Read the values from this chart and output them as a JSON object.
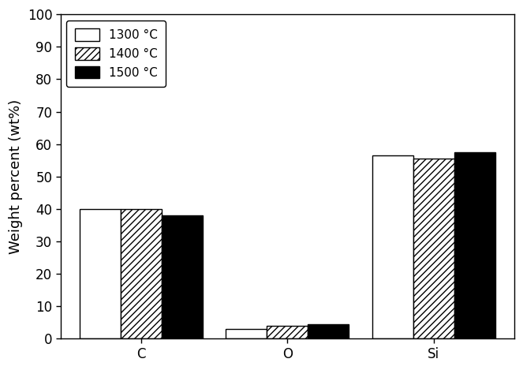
{
  "categories": [
    "C",
    "O",
    "Si"
  ],
  "series": [
    {
      "label": "1300 °C",
      "values": [
        40.0,
        3.0,
        56.5
      ],
      "style": "white"
    },
    {
      "label": "1400 °C",
      "values": [
        40.0,
        4.0,
        55.5
      ],
      "style": "hatch"
    },
    {
      "label": "1500 °C",
      "values": [
        38.0,
        4.5,
        57.5
      ],
      "style": "black"
    }
  ],
  "ylabel": "Weight percent (wt%)",
  "ylim": [
    0,
    100
  ],
  "yticks": [
    0,
    10,
    20,
    30,
    40,
    50,
    60,
    70,
    80,
    90,
    100
  ],
  "bar_width": 0.28,
  "edge_color": "#000000",
  "background_color": "#ffffff",
  "hatch_pattern": "////",
  "axis_fontsize": 13,
  "tick_fontsize": 12,
  "legend_fontsize": 11
}
